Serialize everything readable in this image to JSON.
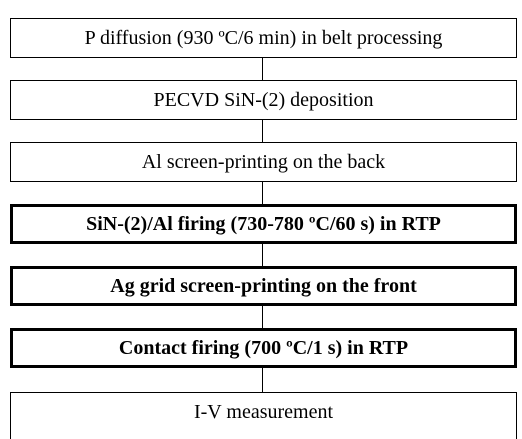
{
  "nodes": [
    {
      "label": "P diffusion (930 ºC/6 min) in belt processing"
    },
    {
      "label": "PECVD SiN-(2) deposition"
    },
    {
      "label": "Al screen-printing on the back"
    },
    {
      "label": "SiN-(2)/Al firing (730-780 ºC/60 s) in RTP"
    },
    {
      "label": "Ag grid screen-printing on the front"
    },
    {
      "label": "Contact firing (700 ºC/1 s) in RTP"
    },
    {
      "label": "I-V measurement"
    }
  ]
}
